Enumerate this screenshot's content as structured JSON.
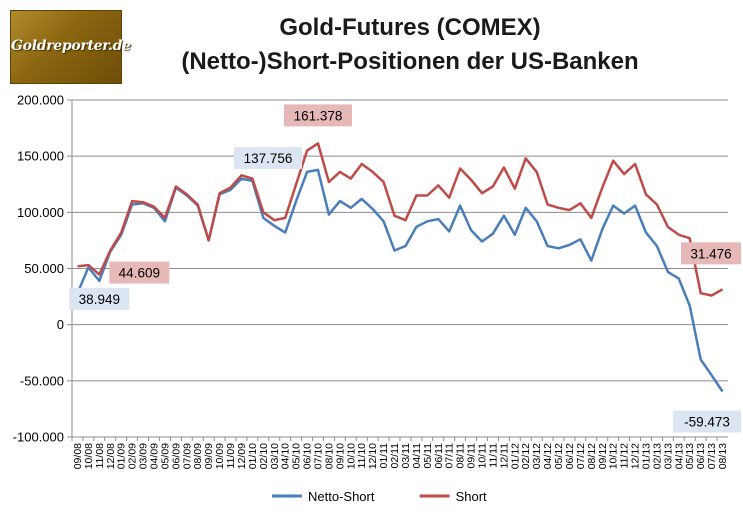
{
  "logo": {
    "text": "Goldreporter.de"
  },
  "chart_data": {
    "type": "line",
    "title": "Gold-Futures (COMEX)",
    "subtitle": "(Netto-)Short-Positionen der US-Banken",
    "xlabel": "",
    "ylabel": "",
    "ylim": [
      -100000,
      200000
    ],
    "yticks": [
      {
        "value": 200000,
        "label": "200.000"
      },
      {
        "value": 150000,
        "label": "150.000"
      },
      {
        "value": 100000,
        "label": "100.000"
      },
      {
        "value": 50000,
        "label": "50.000"
      },
      {
        "value": 0,
        "label": "0"
      },
      {
        "value": -50000,
        "label": "-50.000"
      },
      {
        "value": -100000,
        "label": "-100.000"
      }
    ],
    "grid": true,
    "legend": "bottom",
    "x_tick_labels": [
      "09/08",
      "10/08",
      "11/08",
      "12/08",
      "01/09",
      "02/09",
      "03/09",
      "04/09",
      "05/09",
      "06/09",
      "07/09",
      "08/09",
      "09/09",
      "10/09",
      "11/09",
      "12/09",
      "01/10",
      "02/10",
      "03/10",
      "04/10",
      "05/10",
      "06/10",
      "07/10",
      "08/10",
      "09/10",
      "10/10",
      "11/10",
      "12/10",
      "01/11",
      "02/11",
      "03/11",
      "04/11",
      "05/11",
      "06/11",
      "07/11",
      "08/11",
      "09/11",
      "10/11",
      "11/11",
      "12/11",
      "01/12",
      "02/12",
      "03/12",
      "04/12",
      "05/12",
      "06/12",
      "07/12",
      "08/12",
      "09/12",
      "10/12",
      "11/12",
      "12/12",
      "01/13",
      "02/13",
      "03/13",
      "04/13",
      "05/13",
      "06/13",
      "07/13",
      "08/13"
    ],
    "series": [
      {
        "name": "Netto-Short",
        "color": "#4a7ebb",
        "values": [
          28000,
          51000,
          38949,
          65000,
          80000,
          107000,
          108000,
          104000,
          92000,
          122000,
          115000,
          106000,
          75000,
          116000,
          120000,
          130000,
          128000,
          95000,
          88000,
          82000,
          110000,
          136000,
          137756,
          98000,
          110000,
          104000,
          112000,
          103000,
          92000,
          66000,
          70000,
          87000,
          92000,
          94000,
          83000,
          106000,
          84000,
          74000,
          81000,
          97000,
          80000,
          104000,
          92000,
          70000,
          68000,
          71000,
          76000,
          57000,
          85000,
          106000,
          99000,
          106000,
          82000,
          70000,
          47000,
          41000,
          17000,
          -31000,
          -45000,
          -59473
        ]
      },
      {
        "name": "Short",
        "color": "#be4b48",
        "values": [
          52000,
          53000,
          44609,
          66000,
          82000,
          110000,
          109000,
          105000,
          95000,
          123000,
          116000,
          107000,
          75000,
          117000,
          122000,
          133000,
          130000,
          100000,
          93000,
          95000,
          125000,
          155000,
          161378,
          127000,
          136000,
          130000,
          143000,
          136000,
          127000,
          97000,
          93000,
          115000,
          115000,
          124000,
          113000,
          139000,
          129000,
          117000,
          123000,
          140000,
          121000,
          148000,
          136000,
          107000,
          104000,
          102000,
          108000,
          95000,
          122000,
          146000,
          134000,
          143000,
          116000,
          107000,
          87000,
          80000,
          77000,
          28000,
          26000,
          31476
        ]
      }
    ],
    "annotations": [
      {
        "series": "Short",
        "index": 2,
        "label": "44.609"
      },
      {
        "series": "Netto-Short",
        "index": 2,
        "label": "38.949"
      },
      {
        "series": "Netto-Short",
        "index": 22,
        "label": "137.756"
      },
      {
        "series": "Short",
        "index": 22,
        "label": "161.378"
      },
      {
        "series": "Short",
        "index": 59,
        "label": "31.476"
      },
      {
        "series": "Netto-Short",
        "index": 59,
        "label": "-59.473"
      }
    ],
    "annotation_colors": {
      "Netto-Short": "#dce6f2",
      "Short": "#e6b9b8"
    }
  }
}
